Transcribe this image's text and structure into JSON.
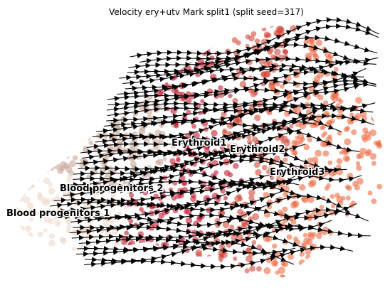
{
  "chart_data": {
    "type": "scatter",
    "title": "Velocity ery+utv Mark split1 (split seed=317)",
    "xlabel": "",
    "ylabel": "",
    "grid": false,
    "axes_visible": false,
    "legend": "on data",
    "cluster_labels": [
      {
        "name": "Blood progenitors 1"
      },
      {
        "name": "Blood progenitors 2"
      },
      {
        "name": "Erythroid1"
      },
      {
        "name": "Erythroid2"
      },
      {
        "name": "Erythroid3"
      }
    ],
    "colors": {
      "blood_progenitors_1": "#f0d8c8",
      "blood_progenitors_2": "#c9a99a",
      "erythroid1": "#c41a2e",
      "erythroid2": "#d44a3a",
      "erythroid3": "#ef6b45",
      "streamlines": "#000000"
    },
    "overlay": "velocity streamlines (arrows pointing from progenitors toward erythroid)"
  }
}
